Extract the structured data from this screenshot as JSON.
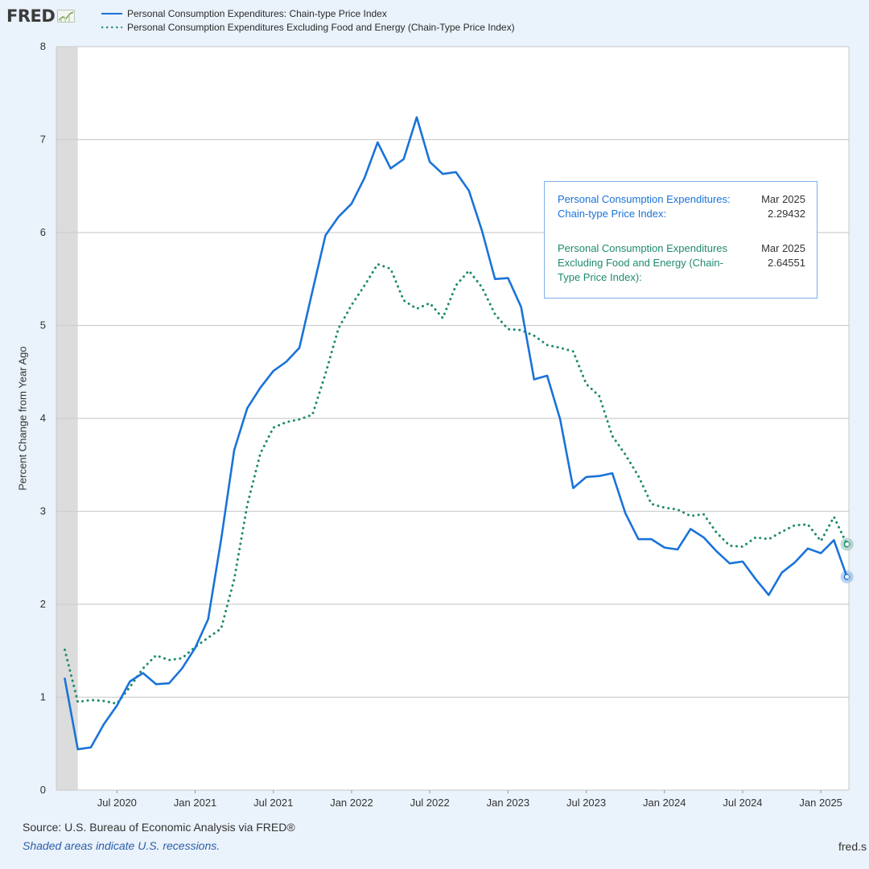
{
  "brand": {
    "name": "FRED"
  },
  "legend": [
    {
      "label": "Personal Consumption Expenditures: Chain-type Price Index",
      "color": "#1a73d9",
      "style": "solid"
    },
    {
      "label": "Personal Consumption Expenditures Excluding Food and Energy (Chain-Type Price Index)",
      "color": "#1e8a6e",
      "style": "dotted"
    }
  ],
  "tooltip": {
    "rows": [
      {
        "name": "Personal Consumption Expenditures: Chain-type Price Index:",
        "date": "Mar 2025",
        "value": "2.29432",
        "color": "#1a73d9"
      },
      {
        "name": "Personal Consumption Expenditures Excluding Food and Energy (Chain-Type Price Index):",
        "date": "Mar 2025",
        "value": "2.64551",
        "color": "#1e8a6e"
      }
    ]
  },
  "footer": {
    "source": "Source: U.S. Bureau of Economic Analysis via FRED®",
    "note": "Shaded areas indicate U.S. recessions.",
    "site": "fred.s"
  },
  "chart_data": {
    "type": "line",
    "title": "",
    "xlabel": "",
    "ylabel": "Percent Change from Year Ago",
    "ylim": [
      0,
      8
    ],
    "yticks": [
      0,
      1,
      2,
      3,
      4,
      5,
      6,
      7,
      8
    ],
    "xticks": [
      "Jul 2020",
      "Jan 2021",
      "Jul 2021",
      "Jan 2022",
      "Jul 2022",
      "Jan 2023",
      "Jul 2023",
      "Jan 2024",
      "Jul 2024",
      "Jan 2025"
    ],
    "recession": {
      "start": "Feb 2020",
      "end": "Apr 2020"
    },
    "x": [
      "Mar 2020",
      "Apr 2020",
      "May 2020",
      "Jun 2020",
      "Jul 2020",
      "Aug 2020",
      "Sep 2020",
      "Oct 2020",
      "Nov 2020",
      "Dec 2020",
      "Jan 2021",
      "Feb 2021",
      "Mar 2021",
      "Apr 2021",
      "May 2021",
      "Jun 2021",
      "Jul 2021",
      "Aug 2021",
      "Sep 2021",
      "Oct 2021",
      "Nov 2021",
      "Dec 2021",
      "Jan 2022",
      "Feb 2022",
      "Mar 2022",
      "Apr 2022",
      "May 2022",
      "Jun 2022",
      "Jul 2022",
      "Aug 2022",
      "Sep 2022",
      "Oct 2022",
      "Nov 2022",
      "Dec 2022",
      "Jan 2023",
      "Feb 2023",
      "Mar 2023",
      "Apr 2023",
      "May 2023",
      "Jun 2023",
      "Jul 2023",
      "Aug 2023",
      "Sep 2023",
      "Oct 2023",
      "Nov 2023",
      "Dec 2023",
      "Jan 2024",
      "Feb 2024",
      "Mar 2024",
      "Apr 2024",
      "May 2024",
      "Jun 2024",
      "Jul 2024",
      "Aug 2024",
      "Sep 2024",
      "Oct 2024",
      "Nov 2024",
      "Dec 2024",
      "Jan 2025",
      "Feb 2025",
      "Mar 2025"
    ],
    "series": [
      {
        "name": "Personal Consumption Expenditures: Chain-type Price Index",
        "color": "#1a73d9",
        "style": "solid",
        "values": [
          1.2,
          0.44,
          0.46,
          0.71,
          0.91,
          1.17,
          1.26,
          1.14,
          1.15,
          1.31,
          1.53,
          1.84,
          2.7,
          3.66,
          4.11,
          4.33,
          4.51,
          4.61,
          4.76,
          5.37,
          5.97,
          6.17,
          6.31,
          6.59,
          6.97,
          6.69,
          6.79,
          7.24,
          6.76,
          6.63,
          6.65,
          6.45,
          6.02,
          5.5,
          5.51,
          5.2,
          4.42,
          4.46,
          3.99,
          3.25,
          3.37,
          3.38,
          3.41,
          2.98,
          2.7,
          2.7,
          2.61,
          2.59,
          2.81,
          2.72,
          2.57,
          2.44,
          2.46,
          2.27,
          2.1,
          2.34,
          2.45,
          2.6,
          2.55,
          2.69,
          2.29432
        ]
      },
      {
        "name": "Personal Consumption Expenditures Excluding Food and Energy (Chain-Type Price Index)",
        "color": "#1e8a6e",
        "style": "dotted",
        "values": [
          1.51,
          0.95,
          0.97,
          0.96,
          0.93,
          1.11,
          1.31,
          1.45,
          1.4,
          1.42,
          1.54,
          1.64,
          1.74,
          2.27,
          3.07,
          3.62,
          3.9,
          3.96,
          3.99,
          4.04,
          4.48,
          4.97,
          5.22,
          5.43,
          5.66,
          5.61,
          5.27,
          5.18,
          5.24,
          5.08,
          5.43,
          5.59,
          5.41,
          5.12,
          4.96,
          4.95,
          4.89,
          4.79,
          4.76,
          4.72,
          4.37,
          4.24,
          3.81,
          3.61,
          3.38,
          3.08,
          3.04,
          3.02,
          2.95,
          2.97,
          2.77,
          2.63,
          2.62,
          2.72,
          2.7,
          2.78,
          2.85,
          2.86,
          2.68,
          2.94,
          2.64551
        ]
      }
    ]
  }
}
